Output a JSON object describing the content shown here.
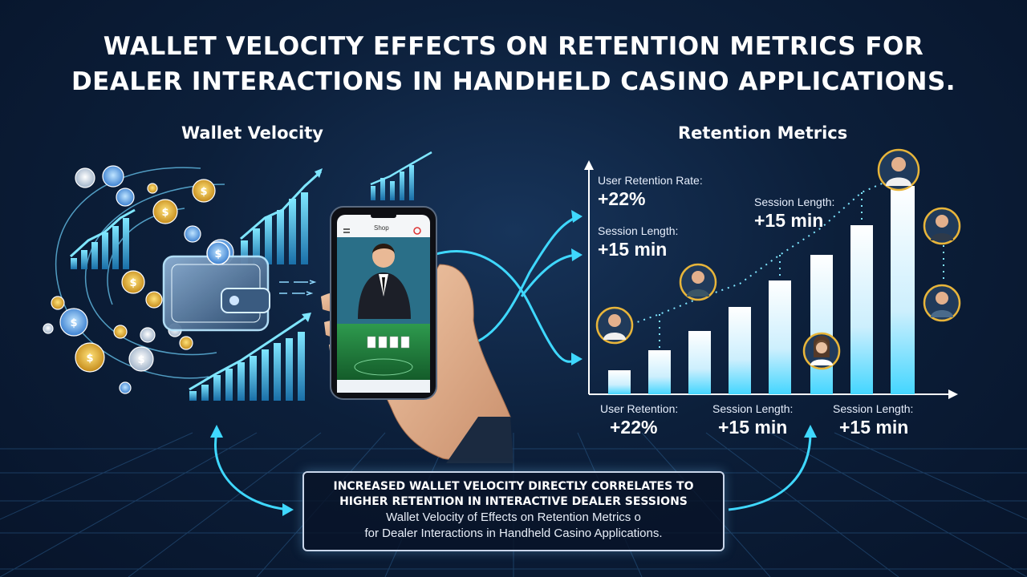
{
  "title": {
    "line1": "WALLET VELOCITY EFFECTS ON RETENTION METRICS FOR",
    "line2": "DEALER INTERACTIONS IN HANDHELD CASINO APPLICATIONS."
  },
  "left_heading": "Wallet Velocity",
  "right_heading": "Retention Metrics",
  "chart_annotations": {
    "user_retention_rate": {
      "label": "User Retention Rate:",
      "value": "+22%"
    },
    "session_length_1": {
      "label": "Session Length:",
      "value": "+15 min"
    },
    "session_length_2": {
      "label": "Session Length:",
      "value": "+15 min"
    }
  },
  "bottom_metrics": [
    {
      "label": "User Retention:",
      "value": "+22%"
    },
    {
      "label": "Session Length:",
      "value": "+15 min"
    },
    {
      "label": "Session Length:",
      "value": "+15 min"
    }
  ],
  "summary": {
    "line1": "INCREASED WALLET VELOCITY DIRECTLY CORRELATES TO",
    "line2": "HIGHER RETENTION IN INTERACTIVE DEALER SESSIONS",
    "line3": "Wallet Velocity of Effects on Retention Metrics o",
    "line4": "for Dealer Interactions  in Handheld Casino Applications."
  },
  "phone": {
    "app_text": "Shop"
  },
  "colors": {
    "accent": "#3fd8ff",
    "background": "#0c1f3a",
    "chip_gold": "#e8b53a",
    "chip_blue": "#5fb4ff",
    "table_green": "#1f7a3c"
  }
}
